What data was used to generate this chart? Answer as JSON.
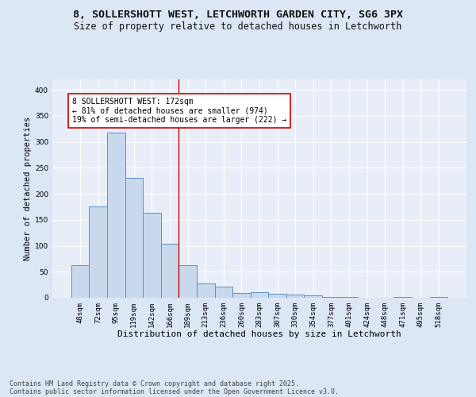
{
  "title1": "8, SOLLERSHOTT WEST, LETCHWORTH GARDEN CITY, SG6 3PX",
  "title2": "Size of property relative to detached houses in Letchworth",
  "xlabel": "Distribution of detached houses by size in Letchworth",
  "ylabel": "Number of detached properties",
  "categories": [
    "48sqm",
    "72sqm",
    "95sqm",
    "119sqm",
    "142sqm",
    "166sqm",
    "189sqm",
    "213sqm",
    "236sqm",
    "260sqm",
    "283sqm",
    "307sqm",
    "330sqm",
    "354sqm",
    "377sqm",
    "401sqm",
    "424sqm",
    "448sqm",
    "471sqm",
    "495sqm",
    "518sqm"
  ],
  "values": [
    62,
    175,
    318,
    231,
    163,
    104,
    62,
    27,
    22,
    9,
    10,
    8,
    6,
    4,
    2,
    1,
    0,
    0,
    1,
    0,
    1
  ],
  "bar_color": "#c8d9ee",
  "bar_edge_color": "#5b8fc4",
  "vline_x": 5.5,
  "vline_color": "#cc0000",
  "annotation_text": "8 SOLLERSHOTT WEST: 172sqm\n← 81% of detached houses are smaller (974)\n19% of semi-detached houses are larger (222) →",
  "annotation_box_color": "#ffffff",
  "annotation_box_edge_color": "#cc0000",
  "ylim": [
    0,
    420
  ],
  "yticks": [
    0,
    50,
    100,
    150,
    200,
    250,
    300,
    350,
    400
  ],
  "bg_color": "#dce6f5",
  "plot_bg_color": "#e8eef8",
  "grid_color": "#ffffff",
  "footer_line1": "Contains HM Land Registry data © Crown copyright and database right 2025.",
  "footer_line2": "Contains public sector information licensed under the Open Government Licence v3.0.",
  "title1_fontsize": 9.5,
  "title2_fontsize": 8.5,
  "xlabel_fontsize": 8,
  "ylabel_fontsize": 7.5,
  "tick_fontsize": 6.5,
  "footer_fontsize": 6,
  "annotation_fontsize": 7
}
